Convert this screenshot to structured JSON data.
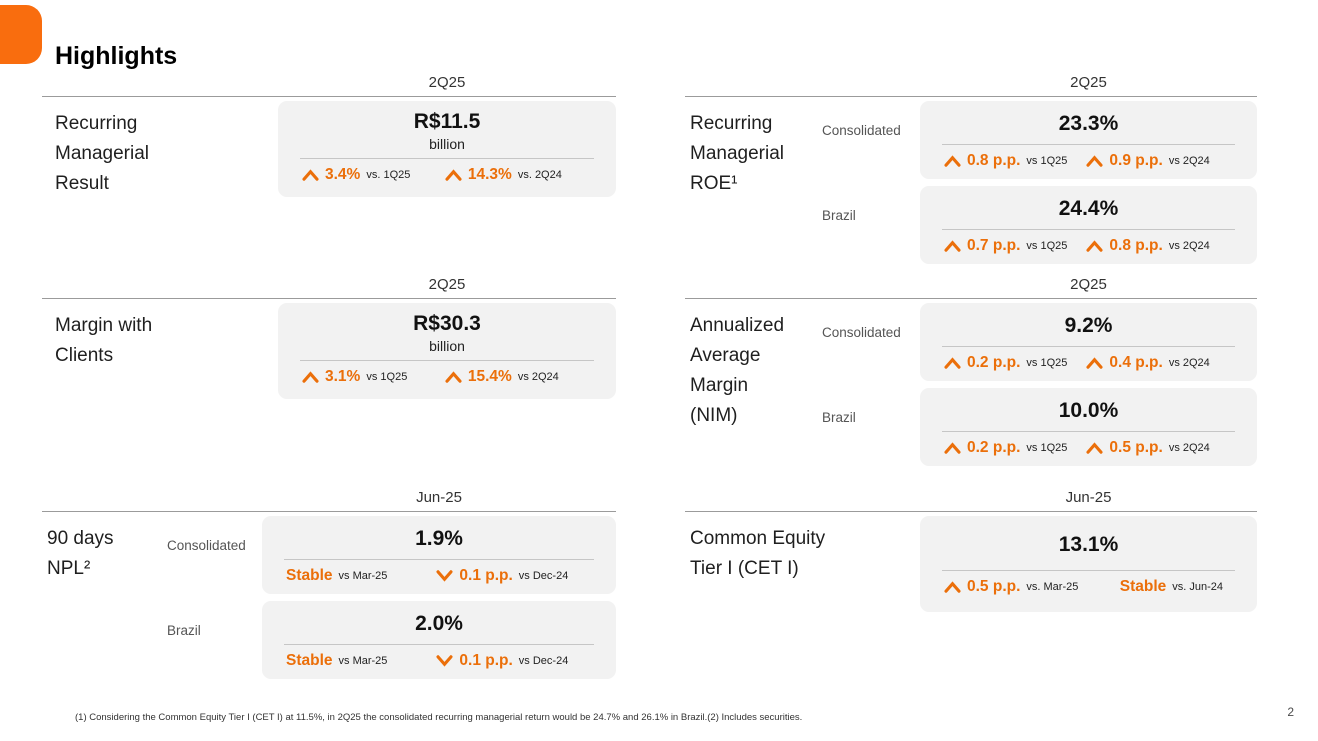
{
  "colors": {
    "accent": "#EB6F0A",
    "logo": "#F96D0E",
    "box_bg": "#F2F2F2"
  },
  "header": {
    "title": "Highlights"
  },
  "cards": {
    "result": {
      "period": "2Q25",
      "label_lines": [
        "Recurring",
        "Managerial",
        "Result"
      ],
      "rows": [
        {
          "value": "R$11.5",
          "unit": "billion",
          "deltas": [
            {
              "direction": "up",
              "value": "3.4%",
              "vs": "vs. 1Q25"
            },
            {
              "direction": "up",
              "value": "14.3%",
              "vs": "vs. 2Q24"
            }
          ]
        }
      ]
    },
    "roe": {
      "period": "2Q25",
      "label_lines": [
        "Recurring",
        "Managerial",
        "ROE¹"
      ],
      "rows": [
        {
          "sublabel": "Consolidated",
          "value": "23.3%",
          "deltas": [
            {
              "direction": "up",
              "value": "0.8 p.p.",
              "vs": "vs 1Q25"
            },
            {
              "direction": "up",
              "value": "0.9 p.p.",
              "vs": "vs 2Q24"
            }
          ]
        },
        {
          "sublabel": "Brazil",
          "value": "24.4%",
          "deltas": [
            {
              "direction": "up",
              "value": "0.7 p.p.",
              "vs": "vs 1Q25"
            },
            {
              "direction": "up",
              "value": "0.8 p.p.",
              "vs": "vs 2Q24"
            }
          ]
        }
      ]
    },
    "margin": {
      "period": "2Q25",
      "label_lines": [
        "Margin with",
        "Clients"
      ],
      "rows": [
        {
          "value": "R$30.3",
          "unit": "billion",
          "deltas": [
            {
              "direction": "up",
              "value": "3.1%",
              "vs": "vs 1Q25"
            },
            {
              "direction": "up",
              "value": "15.4%",
              "vs": "vs 2Q24"
            }
          ]
        }
      ]
    },
    "nim": {
      "period": "2Q25",
      "label_lines": [
        "Annualized",
        "Average",
        "Margin",
        "(NIM)"
      ],
      "rows": [
        {
          "sublabel": "Consolidated",
          "value": "9.2%",
          "deltas": [
            {
              "direction": "up",
              "value": "0.2 p.p.",
              "vs": "vs 1Q25"
            },
            {
              "direction": "up",
              "value": "0.4 p.p.",
              "vs": "vs 2Q24"
            }
          ]
        },
        {
          "sublabel": "Brazil",
          "value": "10.0%",
          "deltas": [
            {
              "direction": "up",
              "value": "0.2 p.p.",
              "vs": "vs 1Q25"
            },
            {
              "direction": "up",
              "value": "0.5 p.p.",
              "vs": "vs 2Q24"
            }
          ]
        }
      ]
    },
    "npl": {
      "period": "Jun-25",
      "label_lines": [
        "90 days",
        "NPL²"
      ],
      "rows": [
        {
          "sublabel": "Consolidated",
          "value": "1.9%",
          "deltas": [
            {
              "direction": "stable",
              "value": "Stable",
              "vs": "vs Mar-25"
            },
            {
              "direction": "down",
              "value": "0.1 p.p.",
              "vs": "vs Dec-24"
            }
          ]
        },
        {
          "sublabel": "Brazil",
          "value": "2.0%",
          "deltas": [
            {
              "direction": "stable",
              "value": "Stable",
              "vs": "vs Mar-25"
            },
            {
              "direction": "down",
              "value": "0.1 p.p.",
              "vs": "vs Dec-24"
            }
          ]
        }
      ]
    },
    "cet": {
      "period": "Jun-25",
      "label_lines": [
        "Common Equity",
        "Tier I (CET I)"
      ],
      "rows": [
        {
          "value": "13.1%",
          "deltas": [
            {
              "direction": "up",
              "value": "0.5 p.p.",
              "vs": "vs. Mar-25"
            },
            {
              "direction": "stable",
              "value": "Stable",
              "vs": "vs. Jun-24"
            }
          ]
        }
      ]
    }
  },
  "footnote": "(1) Considering the Common Equity Tier I (CET I) at 11.5%, in 2Q25 the consolidated recurring managerial return would be 24.7% and 26.1% in Brazil.(2) Includes securities.",
  "page_number": "2"
}
